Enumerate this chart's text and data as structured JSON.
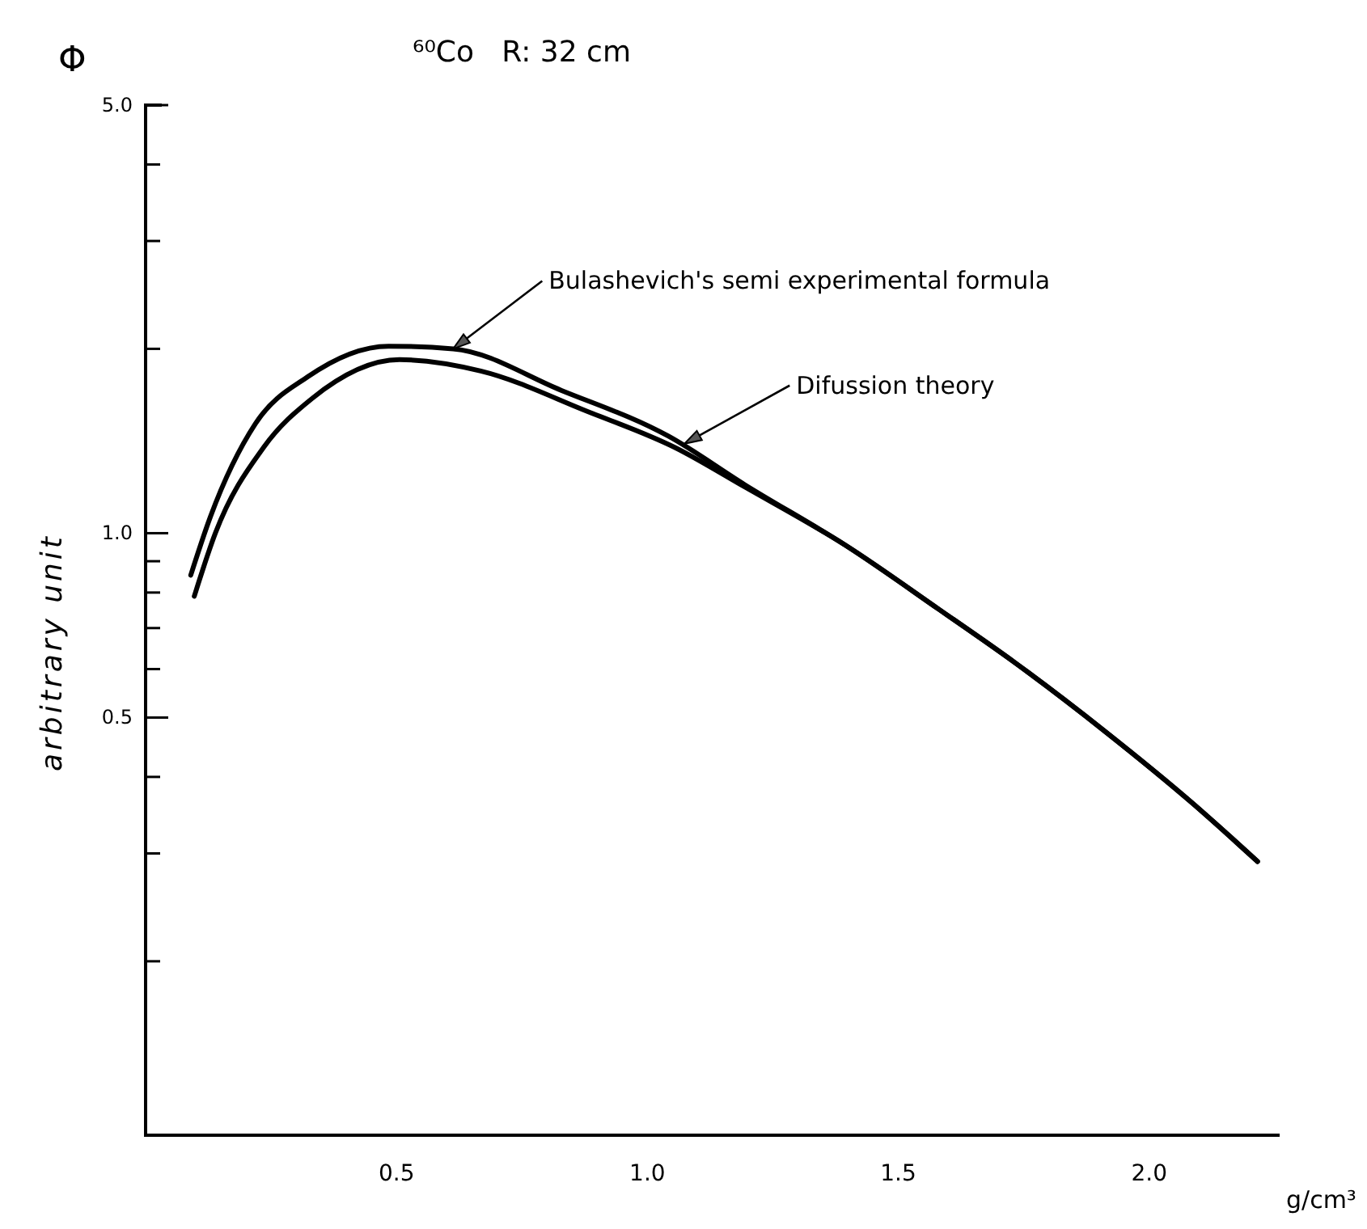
{
  "chart_data": {
    "type": "line",
    "title": "⁶⁰Co   R: 32 cm",
    "xlabel": "g/cm³",
    "ylabel": "arbitrary unit",
    "annotations": [
      "Φ",
      {
        "text": "Bulashevich's semi experimental formula",
        "x": 0.613,
        "y": 2.0
      },
      {
        "text": "Difussion theory",
        "x": 1.074,
        "y": 1.4
      }
    ],
    "log": "y",
    "grid": false,
    "marker": "none",
    "line_style": "solid",
    "xlim": [
      0,
      2.26
    ],
    "ylim": [
      0.104,
      5
    ],
    "xticks": [
      {
        "value": 0.5,
        "label": "0.5"
      },
      {
        "value": 1,
        "label": "1.0"
      },
      {
        "value": 1.5,
        "label": "1.5"
      },
      {
        "value": 2,
        "label": "2.0"
      }
    ],
    "yticks": [
      {
        "value": 5,
        "label": "5.0"
      },
      {
        "value": 4,
        "label": null
      },
      {
        "value": 3,
        "label": null
      },
      {
        "value": 2,
        "label": null
      },
      {
        "value": 1,
        "label": "1.0"
      },
      {
        "value": 0.9,
        "label": null
      },
      {
        "value": 0.8,
        "label": null
      },
      {
        "value": 0.7,
        "label": null
      },
      {
        "value": 0.6,
        "label": null
      },
      {
        "value": 0.5,
        "label": "0.5"
      },
      {
        "value": 0.4,
        "label": null
      },
      {
        "value": 0.3,
        "label": null
      },
      {
        "value": 0.2,
        "label": null
      }
    ],
    "series": [
      {
        "color": "#000000",
        "x": [
          0.09,
          0.129,
          0.219,
          0.323,
          0.484,
          0.613,
          0.829,
          1.042,
          1.194,
          1.397,
          1.581,
          1.732,
          1.913,
          2.087,
          2.216
        ],
        "values": [
          0.854,
          1.063,
          1.51,
          1.8,
          2.02,
          2.0,
          1.71,
          1.44,
          1.2,
          0.953,
          0.751,
          0.615,
          0.474,
          0.362,
          0.291
        ]
      },
      {
        "color": "#000000",
        "x": [
          0.097,
          0.139,
          0.235,
          0.332,
          0.506,
          0.668,
          0.881,
          1.055,
          1.194,
          1.397,
          1.581,
          1.732,
          1.913,
          2.087,
          2.216
        ],
        "values": [
          0.789,
          1.0,
          1.38,
          1.66,
          1.92,
          1.84,
          1.58,
          1.38,
          1.19,
          0.953,
          0.751,
          0.615,
          0.474,
          0.362,
          0.291
        ]
      }
    ]
  }
}
